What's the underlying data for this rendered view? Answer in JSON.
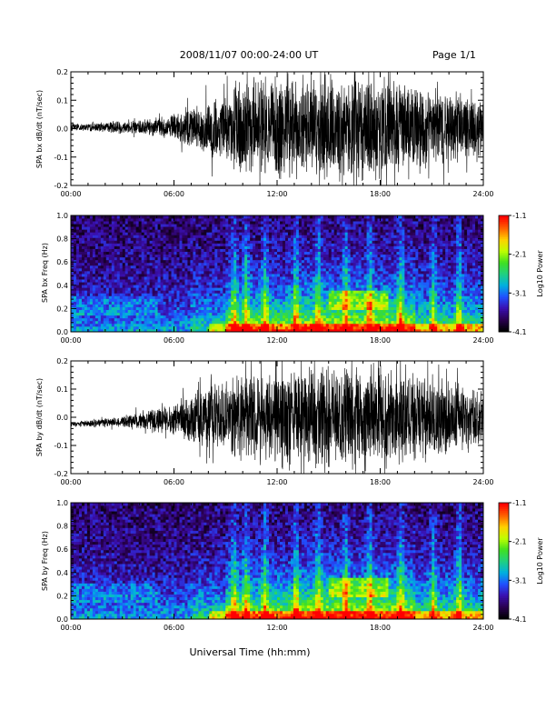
{
  "header": {
    "date_range": "2008/11/07  00:00-24:00 UT",
    "page": "Page 1/1"
  },
  "footer": {
    "xlabel": "Universal Time (hh:mm)"
  },
  "colors": {
    "waveform": "#000000",
    "colormap": [
      "#000000",
      "#2a0050",
      "#3a10b0",
      "#2050ff",
      "#00b0e0",
      "#20d080",
      "#40e020",
      "#c0ff00",
      "#ffd000",
      "#ff6000",
      "#ff0000"
    ]
  },
  "chart_data": [
    {
      "type": "line",
      "ylabel": "SPA bx dB/dt (nT/sec)",
      "xticks": [
        "00:00",
        "06:00",
        "12:00",
        "18:00",
        "24:00"
      ],
      "yticks": [
        "-0.2",
        "-0.1",
        "0.0",
        "0.1",
        "0.2"
      ],
      "xlim": [
        0,
        24
      ],
      "ylim": [
        -0.2,
        0.2
      ],
      "x_units": "hours UT",
      "series": [
        {
          "envelope": {
            "x": [
              0,
              1,
              2,
              3,
              4,
              5,
              6,
              7,
              8,
              9,
              10,
              11,
              12,
              13,
              14,
              15,
              16,
              17,
              18,
              19,
              20,
              21,
              22,
              23,
              24
            ],
            "y": [
              0.015,
              0.015,
              0.02,
              0.025,
              0.03,
              0.035,
              0.05,
              0.08,
              0.1,
              0.13,
              0.2,
              0.2,
              0.2,
              0.2,
              0.19,
              0.2,
              0.18,
              0.2,
              0.2,
              0.18,
              0.16,
              0.15,
              0.14,
              0.12,
              0.1
            ]
          }
        }
      ]
    },
    {
      "type": "heatmap",
      "ylabel": "SPA bx Freq (Hz)",
      "colorbar_label": "Log10 Power",
      "colorbar_ticks": [
        "-1.1",
        "-2.1",
        "-3.1",
        "-4.1"
      ],
      "color_range": [
        -4.1,
        -1.1
      ],
      "xticks": [
        "00:00",
        "06:00",
        "12:00",
        "18:00",
        "24:00"
      ],
      "yticks": [
        "0.0",
        "0.2",
        "0.4",
        "0.6",
        "0.8",
        "1.0"
      ],
      "xlim": [
        0,
        24
      ],
      "ylim": [
        0,
        1
      ]
    },
    {
      "type": "line",
      "ylabel": "SPA by dB/dt (nT/sec)",
      "xticks": [
        "00:00",
        "06:00",
        "12:00",
        "18:00",
        "24:00"
      ],
      "yticks": [
        "-0.2",
        "-0.1",
        "0.0",
        "0.1",
        "0.2"
      ],
      "xlim": [
        0,
        24
      ],
      "ylim": [
        -0.2,
        0.2
      ],
      "x_units": "hours UT",
      "series": [
        {
          "envelope": {
            "x": [
              0,
              1,
              2,
              3,
              4,
              5,
              6,
              7,
              8,
              9,
              10,
              11,
              12,
              13,
              14,
              15,
              16,
              17,
              18,
              19,
              20,
              21,
              22,
              23,
              24
            ],
            "y": [
              0.01,
              0.012,
              0.015,
              0.02,
              0.03,
              0.05,
              0.06,
              0.1,
              0.12,
              0.15,
              0.16,
              0.18,
              0.19,
              0.2,
              0.2,
              0.2,
              0.19,
              0.2,
              0.2,
              0.18,
              0.17,
              0.15,
              0.14,
              0.13,
              0.1
            ]
          }
        }
      ]
    },
    {
      "type": "heatmap",
      "ylabel": "SPA by Freq (Hz)",
      "colorbar_label": "Log10 Power",
      "colorbar_ticks": [
        "-1.1",
        "-2.1",
        "-3.1",
        "-4.1"
      ],
      "color_range": [
        -4.1,
        -1.1
      ],
      "xticks": [
        "00:00",
        "06:00",
        "12:00",
        "18:00",
        "24:00"
      ],
      "yticks": [
        "0.0",
        "0.2",
        "0.4",
        "0.6",
        "0.8",
        "1.0"
      ],
      "xlim": [
        0,
        24
      ],
      "ylim": [
        0,
        1
      ]
    }
  ]
}
